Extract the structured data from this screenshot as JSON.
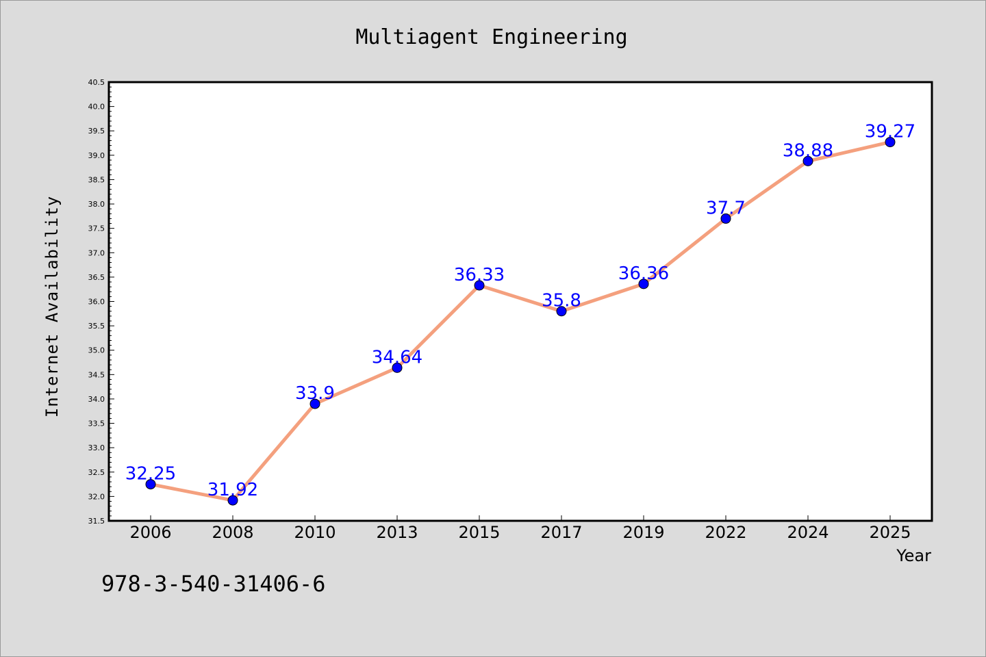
{
  "page": {
    "background": "#dcdcdc",
    "footer_text": "978-3-540-31406-6"
  },
  "chart_data": {
    "type": "line",
    "title": "Multiagent Engineering",
    "xlabel": "Year",
    "ylabel": "Internet Availability",
    "categories": [
      "2006",
      "2008",
      "2010",
      "2013",
      "2015",
      "2017",
      "2019",
      "2022",
      "2024",
      "2025"
    ],
    "series": [
      {
        "values": [
          32.25,
          31.92,
          33.9,
          34.64,
          36.33,
          35.8,
          36.36,
          37.7,
          38.88,
          39.27
        ],
        "data_labels": [
          "32.25",
          "31.92",
          "33.9",
          "34.64",
          "36.33",
          "35.8",
          "36.36",
          "37.7",
          "38.88",
          "39.27"
        ],
        "line_color": "#f4a07e",
        "marker_color": "#0000ff"
      }
    ],
    "ylim": [
      31.5,
      40.5
    ],
    "yticks": [
      "31.5",
      "32.0",
      "32.5",
      "33.0",
      "33.5",
      "34.0",
      "34.5",
      "35.0",
      "35.5",
      "36.0",
      "36.5",
      "37.0",
      "37.5",
      "38.0",
      "38.5",
      "39.0",
      "39.5",
      "40.0",
      "40.5"
    ],
    "grid": false,
    "legend": "none",
    "plot_background": "#ffffff",
    "label_color": "#0000ff"
  }
}
